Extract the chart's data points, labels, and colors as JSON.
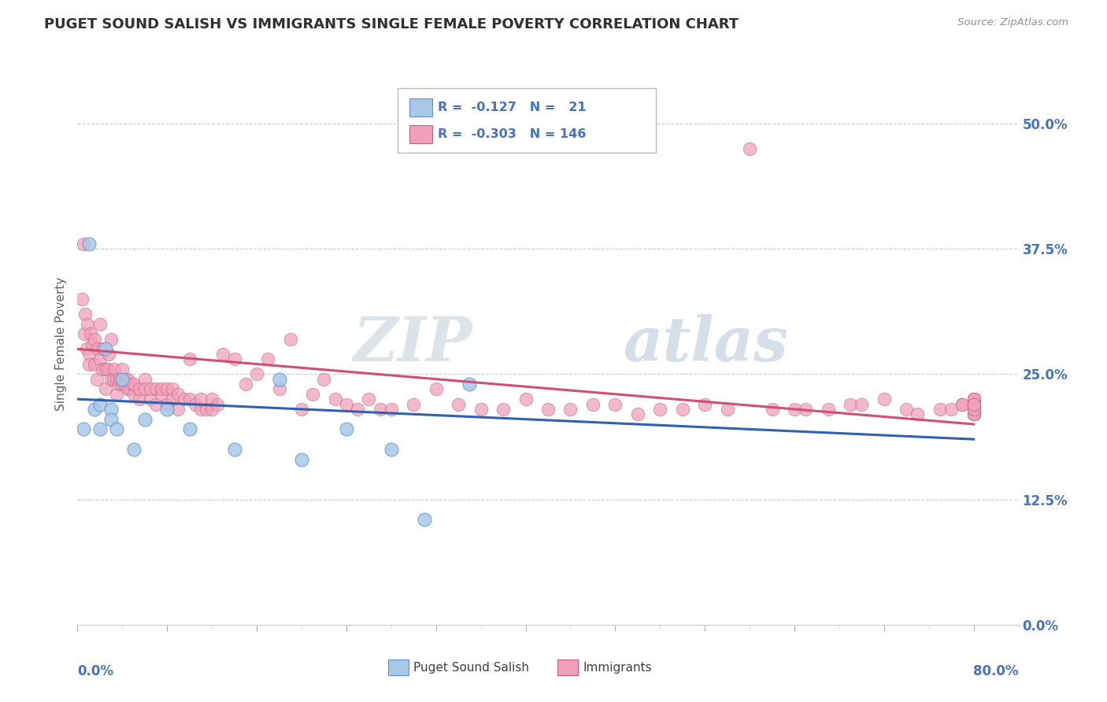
{
  "title": "PUGET SOUND SALISH VS IMMIGRANTS SINGLE FEMALE POVERTY CORRELATION CHART",
  "source": "Source: ZipAtlas.com",
  "ylabel": "Single Female Poverty",
  "ytick_labels": [
    "0.0%",
    "12.5%",
    "25.0%",
    "37.5%",
    "50.0%"
  ],
  "ytick_values": [
    0.0,
    0.125,
    0.25,
    0.375,
    0.5
  ],
  "xmin": 0.0,
  "xmax": 0.8,
  "ymin": 0.0,
  "ymax": 0.56,
  "color_salish_fill": "#a8c8e8",
  "color_salish_edge": "#6090d0",
  "color_immigrants_fill": "#f0a0b8",
  "color_immigrants_edge": "#c06080",
  "color_line_salish": "#3060b0",
  "color_line_immigrants": "#d05070",
  "color_title": "#303030",
  "color_source": "#909090",
  "color_axis_blue": "#4472c4",
  "color_grid": "#cccccc",
  "watermark": "ZIPatlas",
  "legend_line1": "R =  -0.127   N =   21",
  "legend_line2": "R =  -0.303   N = 146",
  "salish_x": [
    0.005,
    0.01,
    0.015,
    0.02,
    0.02,
    0.025,
    0.03,
    0.03,
    0.035,
    0.04,
    0.05,
    0.06,
    0.08,
    0.1,
    0.14,
    0.18,
    0.2,
    0.24,
    0.28,
    0.31,
    0.35
  ],
  "salish_y": [
    0.195,
    0.38,
    0.215,
    0.22,
    0.195,
    0.275,
    0.215,
    0.205,
    0.195,
    0.245,
    0.175,
    0.205,
    0.215,
    0.195,
    0.175,
    0.245,
    0.165,
    0.195,
    0.175,
    0.105,
    0.24
  ],
  "imm_x": [
    0.004,
    0.005,
    0.006,
    0.007,
    0.008,
    0.009,
    0.01,
    0.01,
    0.012,
    0.013,
    0.015,
    0.015,
    0.017,
    0.018,
    0.02,
    0.02,
    0.022,
    0.023,
    0.025,
    0.025,
    0.027,
    0.028,
    0.03,
    0.03,
    0.032,
    0.033,
    0.035,
    0.035,
    0.037,
    0.038,
    0.04,
    0.04,
    0.042,
    0.043,
    0.045,
    0.045,
    0.047,
    0.048,
    0.05,
    0.05,
    0.055,
    0.055,
    0.06,
    0.06,
    0.065,
    0.065,
    0.07,
    0.07,
    0.075,
    0.075,
    0.08,
    0.08,
    0.085,
    0.085,
    0.09,
    0.09,
    0.095,
    0.1,
    0.1,
    0.105,
    0.11,
    0.11,
    0.115,
    0.12,
    0.12,
    0.125,
    0.13,
    0.14,
    0.15,
    0.16,
    0.17,
    0.18,
    0.19,
    0.2,
    0.21,
    0.22,
    0.23,
    0.24,
    0.25,
    0.26,
    0.27,
    0.28,
    0.3,
    0.32,
    0.34,
    0.36,
    0.38,
    0.4,
    0.42,
    0.44,
    0.46,
    0.48,
    0.5,
    0.52,
    0.54,
    0.56,
    0.58,
    0.6,
    0.62,
    0.64,
    0.65,
    0.67,
    0.69,
    0.7,
    0.72,
    0.74,
    0.75,
    0.77,
    0.78,
    0.79,
    0.79,
    0.8,
    0.8,
    0.8,
    0.8,
    0.8,
    0.8,
    0.8,
    0.8,
    0.8,
    0.8,
    0.8,
    0.8,
    0.8,
    0.8,
    0.8,
    0.8,
    0.8,
    0.8,
    0.8,
    0.8,
    0.8,
    0.8,
    0.8,
    0.8,
    0.8,
    0.8,
    0.8,
    0.8,
    0.8,
    0.8,
    0.8,
    0.8,
    0.8,
    0.8,
    0.8
  ],
  "imm_y": [
    0.325,
    0.38,
    0.29,
    0.31,
    0.275,
    0.3,
    0.27,
    0.26,
    0.29,
    0.28,
    0.26,
    0.285,
    0.245,
    0.275,
    0.265,
    0.3,
    0.255,
    0.275,
    0.255,
    0.235,
    0.255,
    0.27,
    0.245,
    0.285,
    0.245,
    0.255,
    0.23,
    0.245,
    0.24,
    0.245,
    0.24,
    0.255,
    0.24,
    0.245,
    0.235,
    0.245,
    0.235,
    0.24,
    0.23,
    0.24,
    0.225,
    0.235,
    0.245,
    0.235,
    0.225,
    0.235,
    0.22,
    0.235,
    0.23,
    0.235,
    0.22,
    0.235,
    0.225,
    0.235,
    0.215,
    0.23,
    0.225,
    0.265,
    0.225,
    0.22,
    0.215,
    0.225,
    0.215,
    0.225,
    0.215,
    0.22,
    0.27,
    0.265,
    0.24,
    0.25,
    0.265,
    0.235,
    0.285,
    0.215,
    0.23,
    0.245,
    0.225,
    0.22,
    0.215,
    0.225,
    0.215,
    0.215,
    0.22,
    0.235,
    0.22,
    0.215,
    0.215,
    0.225,
    0.215,
    0.215,
    0.22,
    0.22,
    0.21,
    0.215,
    0.215,
    0.22,
    0.215,
    0.475,
    0.215,
    0.215,
    0.215,
    0.215,
    0.22,
    0.22,
    0.225,
    0.215,
    0.21,
    0.215,
    0.215,
    0.22,
    0.22,
    0.225,
    0.215,
    0.21,
    0.215,
    0.215,
    0.22,
    0.22,
    0.225,
    0.215,
    0.21,
    0.215,
    0.215,
    0.22,
    0.22,
    0.225,
    0.215,
    0.21,
    0.215,
    0.215,
    0.22,
    0.22,
    0.225,
    0.215,
    0.21,
    0.215,
    0.215,
    0.22,
    0.22,
    0.225,
    0.215,
    0.21,
    0.215,
    0.215,
    0.22,
    0.22
  ]
}
